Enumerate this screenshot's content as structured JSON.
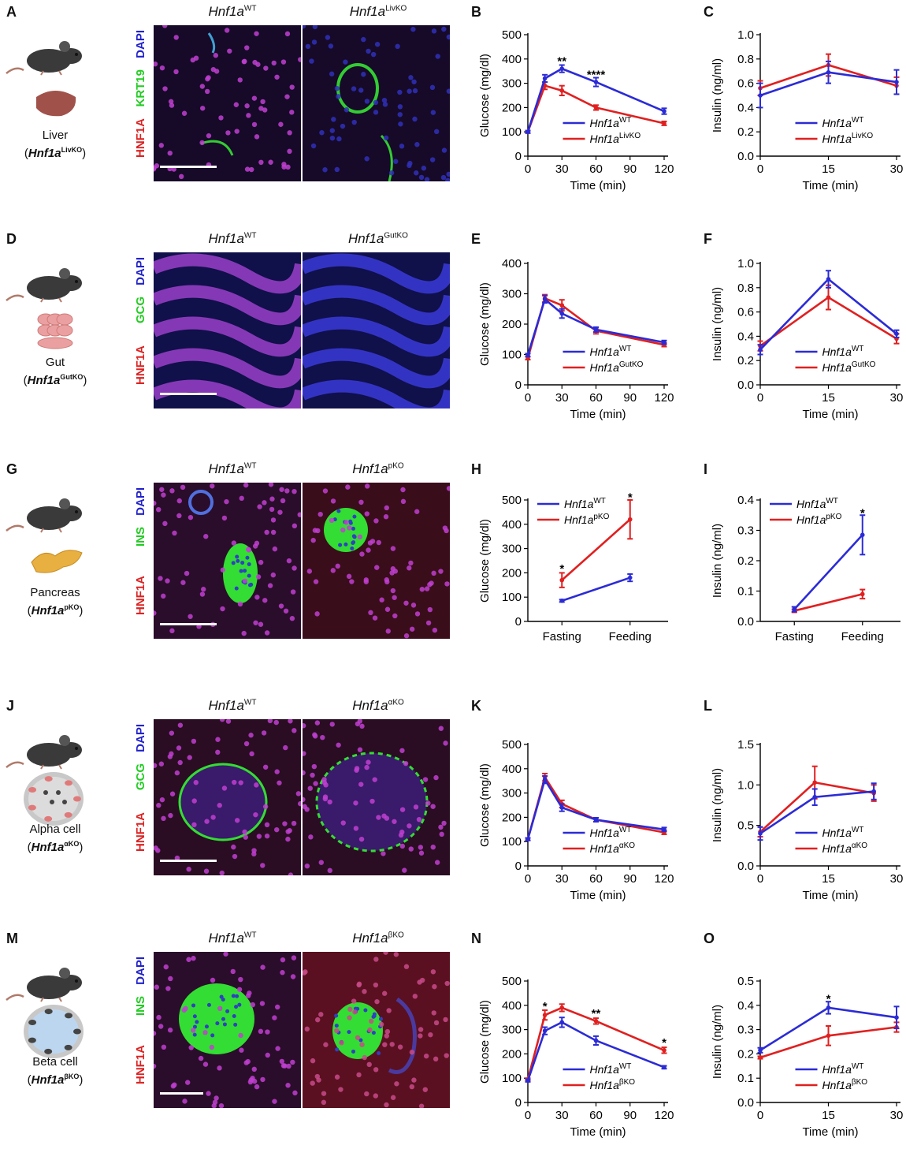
{
  "rows": [
    {
      "letters": [
        "A",
        "B",
        "C"
      ],
      "organ": "Liver",
      "gene": "Hnf1a",
      "ko": "LivKO",
      "wt_label": "Hnf1a",
      "wt_sup": "WT",
      "ko_label": "Hnf1a",
      "ko_sup": "LivKO",
      "stains": [
        "DAPI",
        "KRT19",
        "HNF1A"
      ],
      "green": "KRT19"
    },
    {
      "letters": [
        "D",
        "E",
        "F"
      ],
      "organ": "Gut",
      "gene": "Hnf1a",
      "ko": "GutKO",
      "wt_label": "Hnf1a",
      "wt_sup": "WT",
      "ko_label": "Hnf1a",
      "ko_sup": "GutKO",
      "stains": [
        "DAPI",
        "GCG",
        "HNF1A"
      ],
      "green": "GCG"
    },
    {
      "letters": [
        "G",
        "H",
        "I"
      ],
      "organ": "Pancreas",
      "gene": "Hnf1a",
      "ko": "pKO",
      "wt_label": "Hnf1a",
      "wt_sup": "WT",
      "ko_label": "Hnf1a",
      "ko_sup": "pKO",
      "stains": [
        "DAPI",
        "INS",
        "HNF1A"
      ],
      "green": "INS"
    },
    {
      "letters": [
        "J",
        "K",
        "L"
      ],
      "organ": "Alpha cell",
      "gene": "Hnf1a",
      "ko": "αKO",
      "wt_label": "Hnf1a",
      "wt_sup": "WT",
      "ko_label": "Hnf1a",
      "ko_sup": "αKO",
      "stains": [
        "DAPI",
        "GCG",
        "HNF1A"
      ],
      "green": "GCG"
    },
    {
      "letters": [
        "M",
        "N",
        "O"
      ],
      "organ": "Beta cell",
      "gene": "Hnf1a",
      "ko": "βKO",
      "wt_label": "Hnf1a",
      "wt_sup": "WT",
      "ko_label": "Hnf1a",
      "ko_sup": "βKO",
      "stains": [
        "DAPI",
        "INS",
        "HNF1A"
      ],
      "green": "INS"
    }
  ],
  "colors": {
    "wt": "#2b2bd6",
    "ko": "#e02020",
    "dapi": "#2222cc",
    "green": "#22cc22",
    "red": "#dd2222"
  },
  "chart_data": [
    {
      "panel": "B",
      "type": "line",
      "xlabel": "Time (min)",
      "ylabel": "Glucose (mg/dl)",
      "x": [
        0,
        15,
        30,
        60,
        120
      ],
      "xticks": [
        0,
        30,
        60,
        90,
        120
      ],
      "ylim": [
        0,
        500
      ],
      "yticks": [
        0,
        100,
        200,
        300,
        400,
        500
      ],
      "series": [
        {
          "name": "Hnf1a",
          "sup": "WT",
          "values": [
            100,
            320,
            360,
            305,
            185
          ],
          "err": [
            5,
            15,
            15,
            18,
            12
          ]
        },
        {
          "name": "Hnf1a",
          "sup": "LivKO",
          "values": [
            100,
            290,
            270,
            200,
            135
          ],
          "err": [
            5,
            15,
            20,
            10,
            8
          ]
        }
      ],
      "annotations": [
        {
          "x": 30,
          "y": 395,
          "text": "**"
        },
        {
          "x": 60,
          "y": 340,
          "text": "****"
        }
      ],
      "legend": "bottom-right"
    },
    {
      "panel": "C",
      "type": "line",
      "xlabel": "Time (min)",
      "ylabel": "Insulin (ng/ml)",
      "x": [
        0,
        15,
        30
      ],
      "xticks": [
        0,
        15,
        30
      ],
      "ylim": [
        0,
        1.0
      ],
      "yticks": [
        0.0,
        0.2,
        0.4,
        0.6,
        0.8,
        1.0
      ],
      "series": [
        {
          "name": "Hnf1a",
          "sup": "WT",
          "values": [
            0.5,
            0.69,
            0.61
          ],
          "err": [
            0.1,
            0.09,
            0.1
          ]
        },
        {
          "name": "Hnf1a",
          "sup": "LivKO",
          "values": [
            0.56,
            0.75,
            0.58
          ],
          "err": [
            0.06,
            0.09,
            0.07
          ]
        }
      ],
      "annotations": [],
      "legend": "bottom-right"
    },
    {
      "panel": "E",
      "type": "line",
      "xlabel": "Time (min)",
      "ylabel": "Glucose (mg/dl)",
      "x": [
        0,
        15,
        30,
        60,
        120
      ],
      "xticks": [
        0,
        30,
        60,
        90,
        120
      ],
      "ylim": [
        0,
        400
      ],
      "yticks": [
        0,
        100,
        200,
        300,
        400
      ],
      "series": [
        {
          "name": "Hnf1a",
          "sup": "WT",
          "values": [
            98,
            282,
            235,
            182,
            140
          ],
          "err": [
            5,
            12,
            15,
            8,
            6
          ]
        },
        {
          "name": "Hnf1a",
          "sup": "GutKO",
          "values": [
            88,
            285,
            262,
            178,
            132
          ],
          "err": [
            5,
            12,
            18,
            10,
            6
          ]
        }
      ],
      "annotations": [],
      "legend": "bottom-right"
    },
    {
      "panel": "F",
      "type": "line",
      "xlabel": "Time (min)",
      "ylabel": "Insulin (ng/ml)",
      "x": [
        0,
        15,
        30
      ],
      "xticks": [
        0,
        15,
        30
      ],
      "ylim": [
        0,
        1.0
      ],
      "yticks": [
        0.0,
        0.2,
        0.4,
        0.6,
        0.8,
        1.0
      ],
      "series": [
        {
          "name": "Hnf1a",
          "sup": "WT",
          "values": [
            0.29,
            0.87,
            0.42
          ],
          "err": [
            0.04,
            0.07,
            0.03
          ]
        },
        {
          "name": "Hnf1a",
          "sup": "GutKO",
          "values": [
            0.32,
            0.72,
            0.38
          ],
          "err": [
            0.04,
            0.1,
            0.04
          ]
        }
      ],
      "annotations": [],
      "legend": "bottom-right"
    },
    {
      "panel": "H",
      "type": "line",
      "xlabel": "",
      "ylabel": "Glucose (mg/dl)",
      "categories": [
        "Fasting",
        "Feeding"
      ],
      "ylim": [
        0,
        500
      ],
      "yticks": [
        0,
        100,
        200,
        300,
        400,
        500
      ],
      "series": [
        {
          "name": "Hnf1a",
          "sup": "WT",
          "values": [
            85,
            180
          ],
          "err": [
            5,
            15
          ]
        },
        {
          "name": "Hnf1a",
          "sup": "pKO",
          "values": [
            170,
            420
          ],
          "err": [
            30,
            80
          ]
        }
      ],
      "annotations": [
        {
          "x": 0,
          "y": 220,
          "text": "*"
        },
        {
          "x": 1,
          "y": 515,
          "text": "*"
        }
      ],
      "legend": "top-left"
    },
    {
      "panel": "I",
      "type": "line",
      "xlabel": "",
      "ylabel": "Insulin (ng/ml)",
      "categories": [
        "Fasting",
        "Feeding"
      ],
      "ylim": [
        0,
        0.4
      ],
      "yticks": [
        0.0,
        0.1,
        0.2,
        0.3,
        0.4
      ],
      "series": [
        {
          "name": "Hnf1a",
          "sup": "WT",
          "values": [
            0.04,
            0.285
          ],
          "err": [
            0.008,
            0.065
          ]
        },
        {
          "name": "Hnf1a",
          "sup": "pKO",
          "values": [
            0.035,
            0.09
          ],
          "err": [
            0.005,
            0.015
          ]
        }
      ],
      "annotations": [
        {
          "x": 1,
          "y": 0.36,
          "text": "*"
        }
      ],
      "legend": "top-left"
    },
    {
      "panel": "K",
      "type": "line",
      "xlabel": "Time (min)",
      "ylabel": "Glucose (mg/dl)",
      "x": [
        0,
        15,
        30,
        60,
        120
      ],
      "xticks": [
        0,
        30,
        60,
        90,
        120
      ],
      "ylim": [
        0,
        500
      ],
      "yticks": [
        0,
        100,
        200,
        300,
        400,
        500
      ],
      "series": [
        {
          "name": "Hnf1a",
          "sup": "WT",
          "values": [
            110,
            355,
            240,
            190,
            150
          ],
          "err": [
            5,
            15,
            15,
            8,
            8
          ]
        },
        {
          "name": "Hnf1a",
          "sup": "αKO",
          "values": [
            110,
            365,
            255,
            190,
            138
          ],
          "err": [
            5,
            15,
            15,
            8,
            8
          ]
        }
      ],
      "annotations": [],
      "legend": "bottom-right"
    },
    {
      "panel": "L",
      "type": "line",
      "xlabel": "Time (min)",
      "ylabel": "Insulin (ng/ml)",
      "x": [
        0,
        12,
        25
      ],
      "xticks": [
        0,
        15,
        30
      ],
      "ylim": [
        0,
        1.5
      ],
      "yticks": [
        0.0,
        0.5,
        1.0,
        1.5
      ],
      "series": [
        {
          "name": "Hnf1a",
          "sup": "WT",
          "values": [
            0.4,
            0.85,
            0.92
          ],
          "err": [
            0.08,
            0.1,
            0.1
          ]
        },
        {
          "name": "Hnf1a",
          "sup": "αKO",
          "values": [
            0.42,
            1.03,
            0.9
          ],
          "err": [
            0.06,
            0.2,
            0.1
          ]
        }
      ],
      "annotations": [],
      "legend": "bottom-right"
    },
    {
      "panel": "N",
      "type": "line",
      "xlabel": "Time (min)",
      "ylabel": "Glucose (mg/dl)",
      "x": [
        0,
        15,
        30,
        60,
        120
      ],
      "xticks": [
        0,
        30,
        60,
        90,
        120
      ],
      "ylim": [
        0,
        500
      ],
      "yticks": [
        0,
        100,
        200,
        300,
        400,
        500
      ],
      "series": [
        {
          "name": "Hnf1a",
          "sup": "WT",
          "values": [
            90,
            295,
            330,
            255,
            145
          ],
          "err": [
            5,
            15,
            20,
            18,
            6
          ]
        },
        {
          "name": "Hnf1a",
          "sup": "βKO",
          "values": [
            95,
            360,
            390,
            335,
            215
          ],
          "err": [
            5,
            20,
            15,
            12,
            12
          ]
        }
      ],
      "annotations": [
        {
          "x": 15,
          "y": 400,
          "text": "*"
        },
        {
          "x": 60,
          "y": 370,
          "text": "**"
        },
        {
          "x": 120,
          "y": 250,
          "text": "*"
        }
      ],
      "legend": "bottom-right"
    },
    {
      "panel": "O",
      "type": "line",
      "xlabel": "Time (min)",
      "ylabel": "Insulin (ng/ml)",
      "x": [
        0,
        15,
        30
      ],
      "xticks": [
        0,
        15,
        30
      ],
      "ylim": [
        0,
        0.5
      ],
      "yticks": [
        0.0,
        0.1,
        0.2,
        0.3,
        0.4,
        0.5
      ],
      "series": [
        {
          "name": "Hnf1a",
          "sup": "WT",
          "values": [
            0.215,
            0.39,
            0.35
          ],
          "err": [
            0.01,
            0.025,
            0.045
          ]
        },
        {
          "name": "Hnf1a",
          "sup": "βKO",
          "values": [
            0.185,
            0.275,
            0.31
          ],
          "err": [
            0.005,
            0.04,
            0.02
          ]
        }
      ],
      "annotations": [
        {
          "x": 15,
          "y": 0.43,
          "text": "*"
        }
      ],
      "legend": "bottom-right"
    }
  ]
}
